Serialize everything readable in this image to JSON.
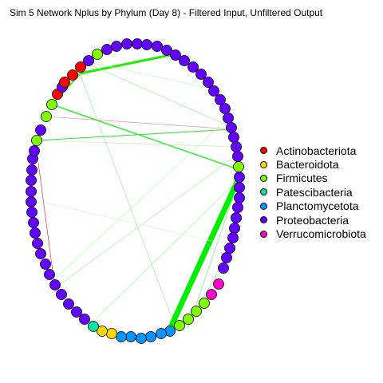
{
  "title": "Sim 5 Network Nplus by Phylum (Day 8) - Filtered Input, Unfiltered Output",
  "legend": [
    {
      "label": "Actinobacteriota",
      "color": "#ff0000"
    },
    {
      "label": "Bacteroidota",
      "color": "#ffd700"
    },
    {
      "label": "Firmicutes",
      "color": "#80ff00"
    },
    {
      "label": "Patescibacteria",
      "color": "#00e5a0"
    },
    {
      "label": "Planctomycetota",
      "color": "#0096ff"
    },
    {
      "label": "Proteobacteria",
      "color": "#6400ff"
    },
    {
      "label": "Verrucomicrobiota",
      "color": "#ff00cc"
    }
  ]
}
